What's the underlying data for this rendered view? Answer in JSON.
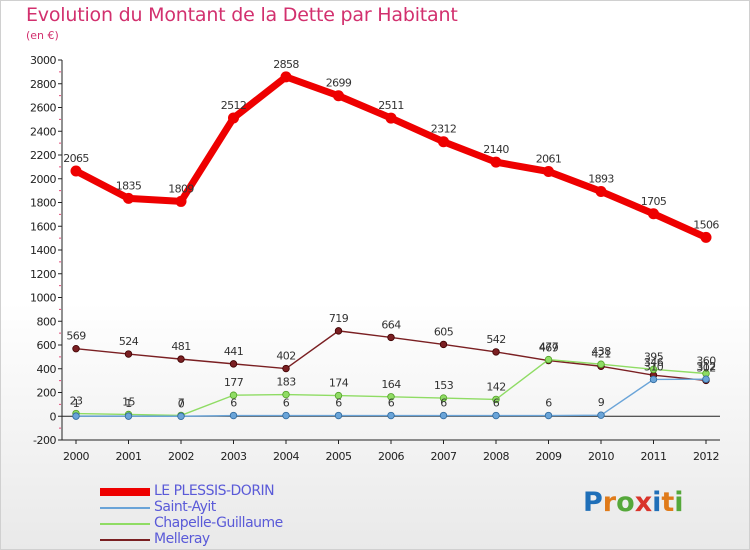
{
  "header": {
    "title": "Evolution du Montant de la Dette par Habitant",
    "subtitle": "(en €)"
  },
  "logo": {
    "text": "Proxiti",
    "letter_colors": [
      "#1f6fb8",
      "#e07b1a",
      "#55a83a",
      "#d9342b",
      "#1f6fb8",
      "#e07b1a",
      "#55a83a"
    ]
  },
  "chart_data": {
    "type": "line",
    "x": [
      "2000",
      "2001",
      "2002",
      "2003",
      "2004",
      "2005",
      "2006",
      "2007",
      "2008",
      "2009",
      "2010",
      "2011",
      "2012"
    ],
    "ylim": [
      -200,
      3000
    ],
    "yticks": [
      "-200",
      "0",
      "200",
      "400",
      "600",
      "800",
      "1000",
      "1200",
      "1400",
      "1600",
      "1800",
      "2000",
      "2200",
      "2400",
      "2600",
      "2800",
      "3000"
    ],
    "grid": false,
    "legend_position": "bottom-left",
    "series": [
      {
        "name": "Melleray",
        "color": "#7a1f22",
        "values": [
          569,
          524,
          481,
          441,
          402,
          719,
          664,
          605,
          542,
          469,
          421,
          346,
          302
        ],
        "labels": [
          "569",
          "524",
          "481",
          "441",
          "402",
          "719",
          "664",
          "605",
          "542",
          "469",
          "421",
          "346",
          "302"
        ]
      },
      {
        "name": "Chapelle-Guillaume",
        "color": "#8fdc64",
        "values": [
          23,
          15,
          7,
          177,
          183,
          174,
          164,
          153,
          142,
          477,
          438,
          395,
          360
        ],
        "labels": [
          "23",
          "15",
          "7",
          "177",
          "183",
          "174",
          "164",
          "153",
          "142",
          "477",
          "438",
          "395",
          "360"
        ]
      },
      {
        "name": "Saint-Ayit",
        "color": "#6aa4d8",
        "values": [
          1,
          1,
          0,
          6,
          6,
          6,
          6,
          6,
          6,
          6,
          9,
          310,
          312
        ],
        "labels": [
          "1",
          "1",
          "0",
          "6",
          "6",
          "6",
          "6",
          "6",
          "6",
          "6",
          "9",
          "310",
          "312"
        ]
      },
      {
        "name": "LE PLESSIS-DORIN",
        "color": "#ee0000",
        "values": [
          2065,
          1835,
          1809,
          2512,
          2858,
          2699,
          2511,
          2312,
          2140,
          2061,
          1893,
          1705,
          1506
        ],
        "labels": [
          "2065",
          "1835",
          "1809",
          "2512",
          "2858",
          "2699",
          "2511",
          "2312",
          "2140",
          "2061",
          "1893",
          "1705",
          "1506"
        ]
      }
    ]
  },
  "legend": {
    "items": [
      {
        "label": "LE PLESSIS-DORIN",
        "color": "#ee0000"
      },
      {
        "label": "Saint-Ayit",
        "color": "#6aa4d8"
      },
      {
        "label": "Chapelle-Guillaume",
        "color": "#8fdc64"
      },
      {
        "label": "Melleray",
        "color": "#7a1f22"
      }
    ]
  }
}
